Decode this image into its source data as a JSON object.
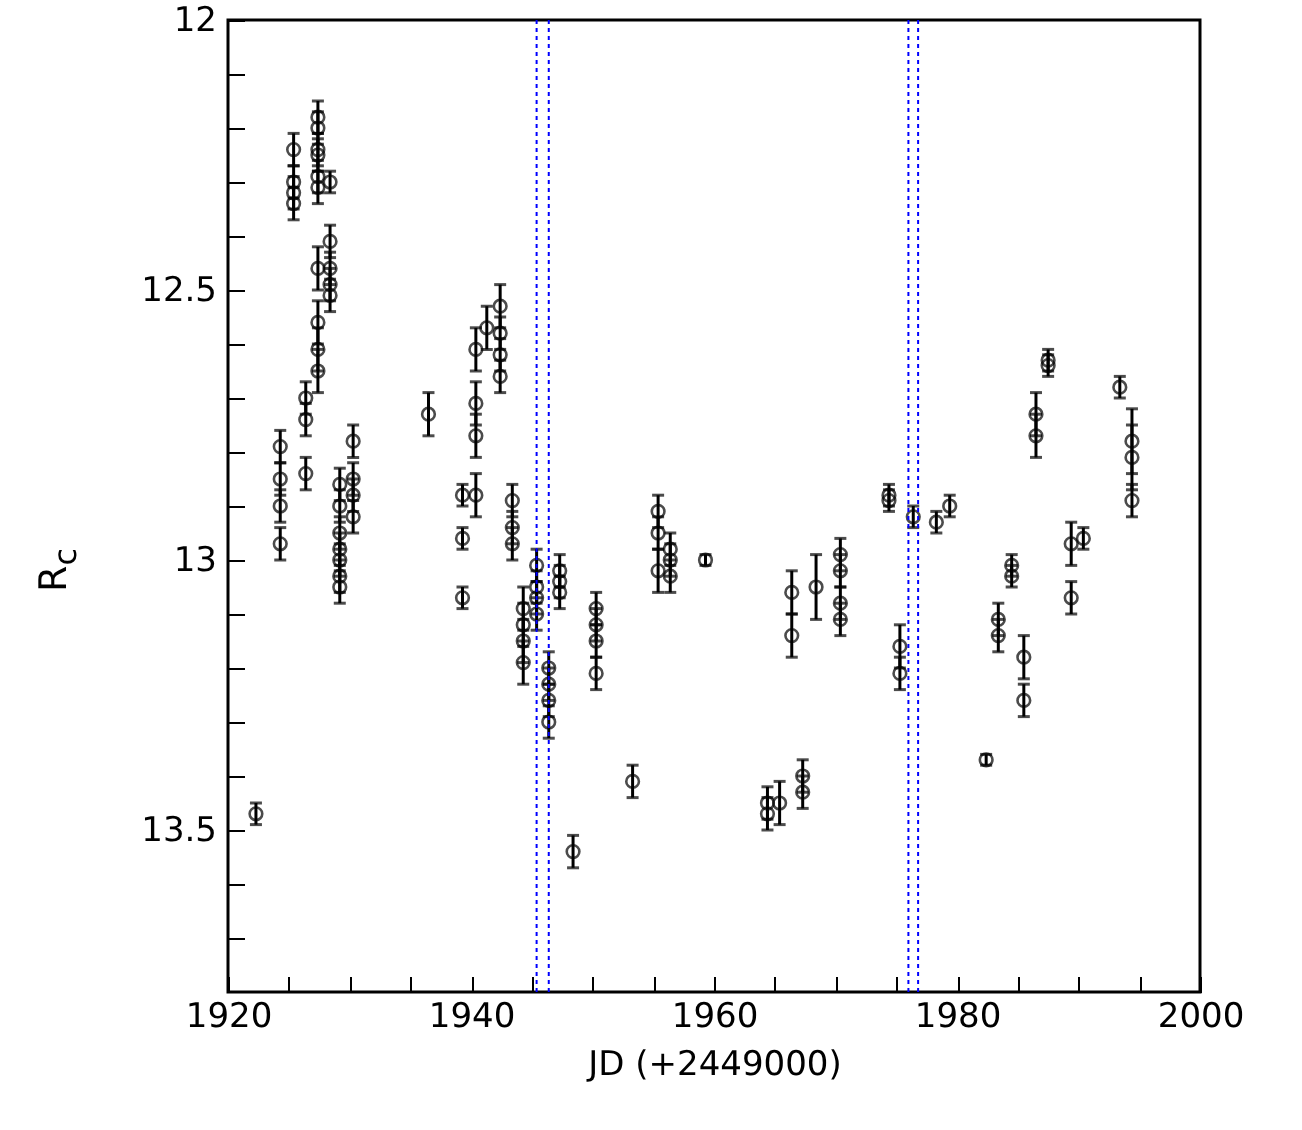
{
  "chart_data": {
    "type": "scatter",
    "xlabel": "JD (+2449000)",
    "ylabel": "R$_{c}$",
    "xlim": [
      1920,
      2000
    ],
    "ylim": [
      13.8,
      12
    ],
    "xticks": [
      1920,
      {
        "value": 1925,
        "label": null
      },
      {
        "value": 1930,
        "label": null
      },
      {
        "value": 1935,
        "label": null
      },
      1940,
      {
        "value": 1945,
        "label": null
      },
      {
        "value": 1950,
        "label": null
      },
      {
        "value": 1955,
        "label": null
      },
      1960,
      {
        "value": 1965,
        "label": null
      },
      {
        "value": 1970,
        "label": null
      },
      {
        "value": 1975,
        "label": null
      },
      1980,
      {
        "value": 1985,
        "label": null
      },
      {
        "value": 1990,
        "label": null
      },
      {
        "value": 1995,
        "label": null
      },
      2000
    ],
    "yticks": [
      12,
      {
        "value": 12.1,
        "label": null
      },
      {
        "value": 12.2,
        "label": null
      },
      {
        "value": 12.3,
        "label": null
      },
      {
        "value": 12.4,
        "label": null
      },
      12.5,
      {
        "value": 12.6,
        "label": null
      },
      {
        "value": 12.7,
        "label": null
      },
      {
        "value": 12.8,
        "label": null
      },
      {
        "value": 12.9,
        "label": null
      },
      13,
      {
        "value": 13.1,
        "label": null
      },
      {
        "value": 13.2,
        "label": null
      },
      {
        "value": 13.3,
        "label": null
      },
      {
        "value": 13.4,
        "label": null
      },
      13.5,
      {
        "value": 13.6,
        "label": null
      },
      {
        "value": 13.7,
        "label": null
      }
    ],
    "grid": false,
    "marker": "circle",
    "ref_lines": [
      {
        "axis": "x",
        "value": 1945.4,
        "color": "#0000ff",
        "line_style": "dotted"
      },
      {
        "axis": "x",
        "value": 1946.4,
        "color": "#0000ff",
        "line_style": "dotted"
      },
      {
        "axis": "x",
        "value": 1976.0,
        "color": "#0000ff",
        "line_style": "dotted"
      },
      {
        "axis": "x",
        "value": 1976.8,
        "color": "#0000ff",
        "line_style": "dotted"
      }
    ],
    "series": [
      {
        "color": "#000000",
        "x": [
          1922.3,
          1924.3,
          1924.3,
          1924.3,
          1924.3,
          1925.4,
          1925.4,
          1925.4,
          1925.4,
          1926.4,
          1926.4,
          1926.4,
          1927.4,
          1927.4,
          1927.4,
          1927.4,
          1927.4,
          1927.4,
          1927.4,
          1927.4,
          1927.4,
          1927.4,
          1928.4,
          1928.4,
          1928.4,
          1928.4,
          1928.4,
          1929.2,
          1929.2,
          1929.2,
          1929.2,
          1929.2,
          1929.2,
          1929.2,
          1930.3,
          1930.3,
          1930.3,
          1930.3,
          1936.5,
          1939.3,
          1939.3,
          1939.3,
          1940.4,
          1940.4,
          1940.4,
          1940.4,
          1941.3,
          1942.4,
          1942.4,
          1942.4,
          1942.4,
          1943.4,
          1943.4,
          1943.4,
          1944.3,
          1944.3,
          1944.3,
          1944.3,
          1945.4,
          1945.4,
          1945.4,
          1945.4,
          1946.4,
          1946.4,
          1946.4,
          1946.4,
          1947.3,
          1947.3,
          1947.3,
          1948.4,
          1950.3,
          1950.3,
          1950.3,
          1950.3,
          1953.3,
          1955.4,
          1955.4,
          1955.4,
          1956.4,
          1956.4,
          1956.4,
          1959.3,
          1964.4,
          1964.4,
          1965.4,
          1966.4,
          1966.4,
          1967.3,
          1967.3,
          1968.4,
          1970.4,
          1970.4,
          1970.4,
          1970.4,
          1974.4,
          1974.4,
          1975.3,
          1975.3,
          1976.4,
          1978.3,
          1979.4,
          1982.4,
          1983.4,
          1983.4,
          1984.5,
          1984.5,
          1985.5,
          1985.5,
          1986.5,
          1986.5,
          1987.5,
          1987.5,
          1989.4,
          1989.4,
          1990.4,
          1993.4,
          1994.4,
          1994.4,
          1994.4
        ],
        "values": [
          13.47,
          12.79,
          12.85,
          12.9,
          12.97,
          12.24,
          12.3,
          12.32,
          12.34,
          12.7,
          12.74,
          12.84,
          12.18,
          12.2,
          12.24,
          12.25,
          12.29,
          12.31,
          12.46,
          12.56,
          12.61,
          12.65,
          12.3,
          12.41,
          12.46,
          12.49,
          12.51,
          12.86,
          12.9,
          12.95,
          12.98,
          13.0,
          13.03,
          13.05,
          12.78,
          12.85,
          12.88,
          12.92,
          12.73,
          12.88,
          12.96,
          13.07,
          12.61,
          12.71,
          12.77,
          12.88,
          12.57,
          12.53,
          12.58,
          12.62,
          12.66,
          12.89,
          12.94,
          12.97,
          13.09,
          13.12,
          13.15,
          13.19,
          13.01,
          13.05,
          13.07,
          13.1,
          13.2,
          13.23,
          13.26,
          13.3,
          13.02,
          13.04,
          13.06,
          13.54,
          13.09,
          13.12,
          13.15,
          13.21,
          13.41,
          12.91,
          12.95,
          13.02,
          12.98,
          13.0,
          13.03,
          13.0,
          13.45,
          13.47,
          13.45,
          13.06,
          13.14,
          13.4,
          13.43,
          13.05,
          12.99,
          13.02,
          13.08,
          13.11,
          12.88,
          12.89,
          13.16,
          13.21,
          12.92,
          12.93,
          12.9,
          13.37,
          13.11,
          13.14,
          13.01,
          13.03,
          13.18,
          13.26,
          12.73,
          12.77,
          12.63,
          12.64,
          12.97,
          13.07,
          12.96,
          12.68,
          12.78,
          12.81,
          12.89
        ],
        "errors": [
          0.02,
          0.03,
          0.03,
          0.03,
          0.03,
          0.03,
          0.03,
          0.03,
          0.03,
          0.03,
          0.03,
          0.03,
          0.03,
          0.03,
          0.03,
          0.03,
          0.03,
          0.03,
          0.04,
          0.04,
          0.04,
          0.04,
          0.02,
          0.03,
          0.03,
          0.03,
          0.03,
          0.03,
          0.03,
          0.03,
          0.03,
          0.03,
          0.03,
          0.03,
          0.03,
          0.03,
          0.03,
          0.03,
          0.04,
          0.02,
          0.02,
          0.02,
          0.04,
          0.04,
          0.04,
          0.04,
          0.04,
          0.04,
          0.03,
          0.03,
          0.03,
          0.03,
          0.03,
          0.03,
          0.04,
          0.04,
          0.04,
          0.04,
          0.03,
          0.03,
          0.03,
          0.03,
          0.03,
          0.03,
          0.03,
          0.03,
          0.03,
          0.03,
          0.03,
          0.03,
          0.03,
          0.03,
          0.03,
          0.03,
          0.03,
          0.03,
          0.03,
          0.04,
          0.03,
          0.03,
          0.03,
          0.01,
          0.03,
          0.03,
          0.04,
          0.04,
          0.04,
          0.03,
          0.03,
          0.06,
          0.03,
          0.03,
          0.03,
          0.03,
          0.02,
          0.02,
          0.04,
          0.03,
          0.02,
          0.02,
          0.02,
          0.01,
          0.03,
          0.03,
          0.02,
          0.02,
          0.04,
          0.03,
          0.04,
          0.04,
          0.02,
          0.02,
          0.04,
          0.03,
          0.02,
          0.02,
          0.06,
          0.06,
          0.03
        ]
      }
    ]
  }
}
